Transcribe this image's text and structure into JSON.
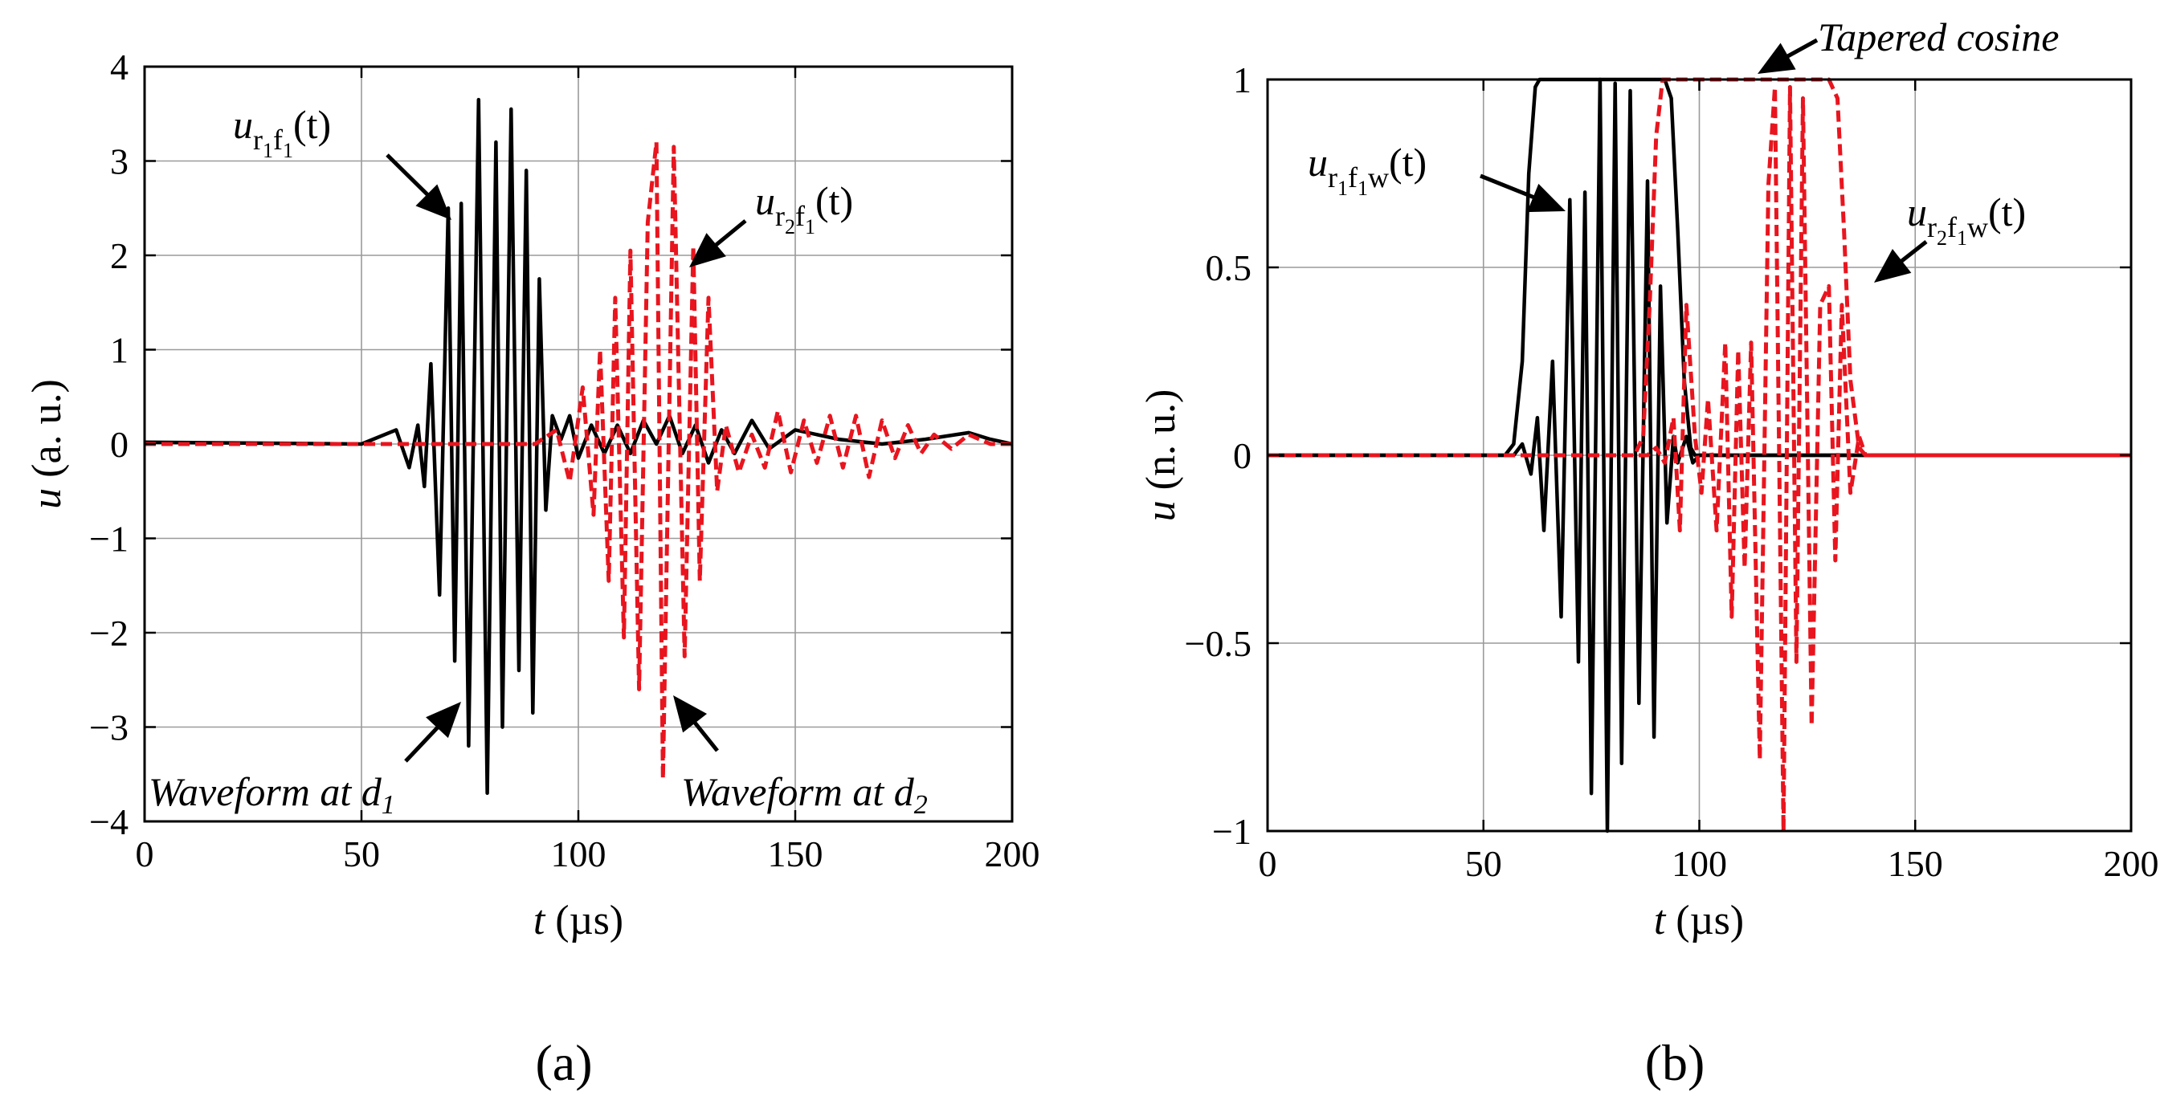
{
  "chart_data": [
    {
      "type": "line",
      "panel_label": "(a)",
      "xlabel_var": "t",
      "xlabel_unit": " (µs)",
      "ylabel_var": "u",
      "ylabel_unit": " (a. u.)",
      "xlim": [
        0,
        200
      ],
      "ylim": [
        -4,
        4
      ],
      "xticks": [
        0,
        50,
        100,
        150,
        200
      ],
      "xtick_labels": [
        "0",
        "50",
        "100",
        "150",
        "200"
      ],
      "yticks": [
        -4,
        -3,
        -2,
        -1,
        0,
        1,
        2,
        3,
        4
      ],
      "ytick_labels": [
        "−4",
        "−3",
        "−2",
        "−1",
        "0",
        "1",
        "2",
        "3",
        "4"
      ],
      "series": [
        {
          "name": "u_r1f1(t)",
          "color": "#000000",
          "style": "solid",
          "points": [
            [
              0,
              0.02
            ],
            [
              50,
              0.0
            ],
            [
              58,
              0.15
            ],
            [
              61,
              -0.25
            ],
            [
              63,
              0.2
            ],
            [
              64.5,
              -0.45
            ],
            [
              66,
              0.85
            ],
            [
              68,
              -1.6
            ],
            [
              70,
              2.5
            ],
            [
              71.5,
              -2.3
            ],
            [
              73,
              2.55
            ],
            [
              74.7,
              -3.2
            ],
            [
              77,
              3.65
            ],
            [
              79,
              -3.7
            ],
            [
              81,
              3.2
            ],
            [
              82.5,
              -3.0
            ],
            [
              84.5,
              3.55
            ],
            [
              86.3,
              -2.4
            ],
            [
              88,
              2.9
            ],
            [
              89.5,
              -2.85
            ],
            [
              91,
              1.75
            ],
            [
              92.5,
              -0.7
            ],
            [
              94,
              0.3
            ],
            [
              96,
              0.05
            ],
            [
              98,
              0.3
            ],
            [
              100,
              -0.15
            ],
            [
              103,
              0.2
            ],
            [
              106,
              -0.1
            ],
            [
              109,
              0.2
            ],
            [
              112,
              -0.1
            ],
            [
              115,
              0.25
            ],
            [
              118,
              0.0
            ],
            [
              121,
              0.3
            ],
            [
              124,
              -0.1
            ],
            [
              127,
              0.2
            ],
            [
              130,
              -0.2
            ],
            [
              133,
              0.15
            ],
            [
              136,
              -0.1
            ],
            [
              140,
              0.25
            ],
            [
              144,
              -0.05
            ],
            [
              150,
              0.15
            ],
            [
              160,
              0.05
            ],
            [
              170,
              0.0
            ],
            [
              180,
              0.05
            ],
            [
              190,
              0.12
            ],
            [
              195,
              0.05
            ],
            [
              200,
              0.0
            ]
          ]
        },
        {
          "name": "u_r2f1(t)",
          "color": "#e8141e",
          "style": "dashed",
          "points": [
            [
              0,
              0.0
            ],
            [
              90,
              0.0
            ],
            [
              95,
              0.15
            ],
            [
              98,
              -0.4
            ],
            [
              101,
              0.6
            ],
            [
              103.5,
              -0.75
            ],
            [
              105,
              1.0
            ],
            [
              107,
              -1.45
            ],
            [
              108.5,
              1.55
            ],
            [
              110.5,
              -2.05
            ],
            [
              112,
              2.05
            ],
            [
              114,
              -2.6
            ],
            [
              116,
              2.35
            ],
            [
              118,
              3.2
            ],
            [
              119.5,
              -3.55
            ],
            [
              122,
              3.15
            ],
            [
              124.5,
              -2.25
            ],
            [
              126.5,
              2.1
            ],
            [
              128,
              -1.45
            ],
            [
              130,
              1.55
            ],
            [
              132,
              -0.5
            ],
            [
              134,
              0.2
            ],
            [
              137,
              -0.3
            ],
            [
              140,
              0.1
            ],
            [
              143,
              -0.25
            ],
            [
              146,
              0.35
            ],
            [
              149,
              -0.3
            ],
            [
              152,
              0.25
            ],
            [
              155,
              -0.2
            ],
            [
              158,
              0.3
            ],
            [
              161,
              -0.25
            ],
            [
              164,
              0.3
            ],
            [
              167,
              -0.35
            ],
            [
              170,
              0.25
            ],
            [
              173,
              -0.15
            ],
            [
              176,
              0.2
            ],
            [
              179,
              -0.1
            ],
            [
              182,
              0.1
            ],
            [
              186,
              -0.05
            ],
            [
              190,
              0.1
            ],
            [
              195,
              0.0
            ],
            [
              200,
              0.0
            ]
          ]
        }
      ],
      "annotations": [
        {
          "text": "Waveform at d",
          "sub": "1",
          "tip_data": [
            72.5,
            -2.7
          ]
        },
        {
          "text": "Waveform at d",
          "sub": "2",
          "tip_data": [
            120,
            -2.6
          ]
        }
      ],
      "labels": [
        {
          "base": "u",
          "sub1": "r",
          "subsub1": "1",
          "sub2": "f",
          "subsub2": "1",
          "sub3": "",
          "arg": "(t)",
          "tip_data": [
            73,
            2.5
          ]
        },
        {
          "base": "u",
          "sub1": "r",
          "subsub1": "2",
          "sub2": "f",
          "subsub2": "1",
          "sub3": "",
          "arg": "(t)",
          "tip_data": [
            124.5,
            1.85
          ]
        }
      ]
    },
    {
      "type": "line",
      "panel_label": "(b)",
      "xlabel_var": "t",
      "xlabel_unit": " (µs)",
      "ylabel_var": "u",
      "ylabel_unit": " (n. u.)",
      "xlim": [
        0,
        200
      ],
      "ylim": [
        -1,
        1
      ],
      "xticks": [
        0,
        50,
        100,
        150,
        200
      ],
      "xtick_labels": [
        "0",
        "50",
        "100",
        "150",
        "200"
      ],
      "yticks": [
        -1,
        -0.5,
        0,
        0.5,
        1
      ],
      "ytick_labels": [
        "−1",
        "−0.5",
        "0",
        "0.5",
        "1"
      ],
      "series": [
        {
          "name": "Tapered cosine window 1",
          "color": "#000000",
          "style": "solid",
          "points": [
            [
              0,
              0
            ],
            [
              55,
              0
            ],
            [
              57,
              0.03
            ],
            [
              59,
              0.25
            ],
            [
              60.5,
              0.75
            ],
            [
              62,
              0.98
            ],
            [
              63,
              1.0
            ],
            [
              92,
              1.0
            ],
            [
              93.5,
              0.95
            ],
            [
              95,
              0.6
            ],
            [
              96.5,
              0.2
            ],
            [
              98,
              0.02
            ],
            [
              99,
              0
            ],
            [
              200,
              0
            ]
          ]
        },
        {
          "name": "u_r1f1w(t)",
          "color": "#000000",
          "style": "solid",
          "points": [
            [
              0,
              0
            ],
            [
              57,
              0.0
            ],
            [
              59,
              0.03
            ],
            [
              61,
              -0.05
            ],
            [
              62.5,
              0.1
            ],
            [
              64,
              -0.2
            ],
            [
              66,
              0.25
            ],
            [
              68,
              -0.43
            ],
            [
              70,
              0.68
            ],
            [
              72,
              -0.55
            ],
            [
              73.5,
              0.7
            ],
            [
              75,
              -0.9
            ],
            [
              77,
              1.0
            ],
            [
              78.7,
              -1.0
            ],
            [
              80.5,
              0.99
            ],
            [
              82,
              -0.82
            ],
            [
              84,
              0.97
            ],
            [
              86,
              -0.66
            ],
            [
              88,
              0.73
            ],
            [
              89.5,
              -0.75
            ],
            [
              91,
              0.45
            ],
            [
              92.5,
              -0.18
            ],
            [
              94,
              0.05
            ],
            [
              95,
              -0.02
            ],
            [
              97,
              0.05
            ],
            [
              98.5,
              -0.02
            ],
            [
              100,
              0
            ],
            [
              200,
              0
            ]
          ]
        },
        {
          "name": "u_r2f1w(t)",
          "color": "#e8141e",
          "style": "dashed",
          "points": [
            [
              0,
              0
            ],
            [
              88,
              0.0
            ],
            [
              90,
              0.02
            ],
            [
              92,
              -0.02
            ],
            [
              94,
              0.1
            ],
            [
              95.5,
              -0.2
            ],
            [
              97,
              0.4
            ],
            [
              99,
              0.05
            ],
            [
              100.5,
              -0.1
            ],
            [
              102,
              0.15
            ],
            [
              104,
              -0.2
            ],
            [
              106,
              0.3
            ],
            [
              107.5,
              -0.43
            ],
            [
              109,
              0.28
            ],
            [
              110.5,
              -0.3
            ],
            [
              112,
              0.3
            ],
            [
              114,
              -0.81
            ],
            [
              116,
              0.72
            ],
            [
              117.5,
              0.98
            ],
            [
              119.5,
              -1.0
            ],
            [
              121,
              0.98
            ],
            [
              122.5,
              -0.55
            ],
            [
              124,
              0.95
            ],
            [
              126,
              -0.72
            ],
            [
              128,
              0.4
            ],
            [
              130,
              0.45
            ],
            [
              131.5,
              -0.28
            ],
            [
              133,
              0.4
            ],
            [
              135,
              -0.1
            ],
            [
              137,
              0.05
            ],
            [
              138.5,
              0.0
            ],
            [
              200,
              0
            ]
          ]
        },
        {
          "name": "Tapered cosine window 2",
          "color": "#e8141e",
          "style": "dashed",
          "points": [
            [
              0,
              0
            ],
            [
              85,
              0
            ],
            [
              87,
              0.05
            ],
            [
              88.5,
              0.4
            ],
            [
              90,
              0.85
            ],
            [
              91.5,
              1.0
            ],
            [
              130,
              1.0
            ],
            [
              132,
              0.95
            ],
            [
              133.5,
              0.6
            ],
            [
              135,
              0.2
            ],
            [
              137,
              0.02
            ],
            [
              138.5,
              0
            ],
            [
              200,
              0
            ]
          ]
        }
      ],
      "annotations": [
        {
          "text": "Tapered cosine",
          "sub": "",
          "tip_data": [
            114,
            1.0
          ]
        }
      ],
      "labels": [
        {
          "base": "u",
          "sub1": "r",
          "subsub1": "1",
          "sub2": "f",
          "subsub2": "1",
          "sub3": "w",
          "arg": "(t)",
          "tip_data": [
            71.5,
            0.62
          ]
        },
        {
          "base": "u",
          "sub1": "r",
          "subsub1": "2",
          "sub2": "f",
          "subsub2": "1",
          "sub3": "w",
          "arg": "(t)",
          "tip_data": [
            129,
            0.43
          ]
        }
      ]
    }
  ]
}
